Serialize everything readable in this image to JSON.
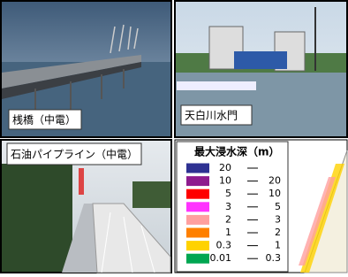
{
  "photos": [
    {
      "caption": "桟橋（中電）"
    },
    {
      "caption": "天白川水門"
    },
    {
      "caption": "石油パイプライン（中電）"
    }
  ],
  "legend": {
    "title": "最大浸水深（m）",
    "items": [
      {
        "color": "#2e3192",
        "from": "20"
      },
      {
        "color": "#8e1b8e",
        "from": "10",
        "to": "20"
      },
      {
        "color": "#ff0000",
        "from": "5",
        "to": "10"
      },
      {
        "color": "#ff33ff",
        "from": "3",
        "to": "5"
      },
      {
        "color": "#ff9f9f",
        "from": "2",
        "to": "3"
      },
      {
        "color": "#ff8000",
        "from": "1",
        "to": "2"
      },
      {
        "color": "#ffd200",
        "from": "0.3",
        "to": "1"
      },
      {
        "color": "#00a651",
        "from": "0.01",
        "to": "0.3"
      }
    ]
  }
}
